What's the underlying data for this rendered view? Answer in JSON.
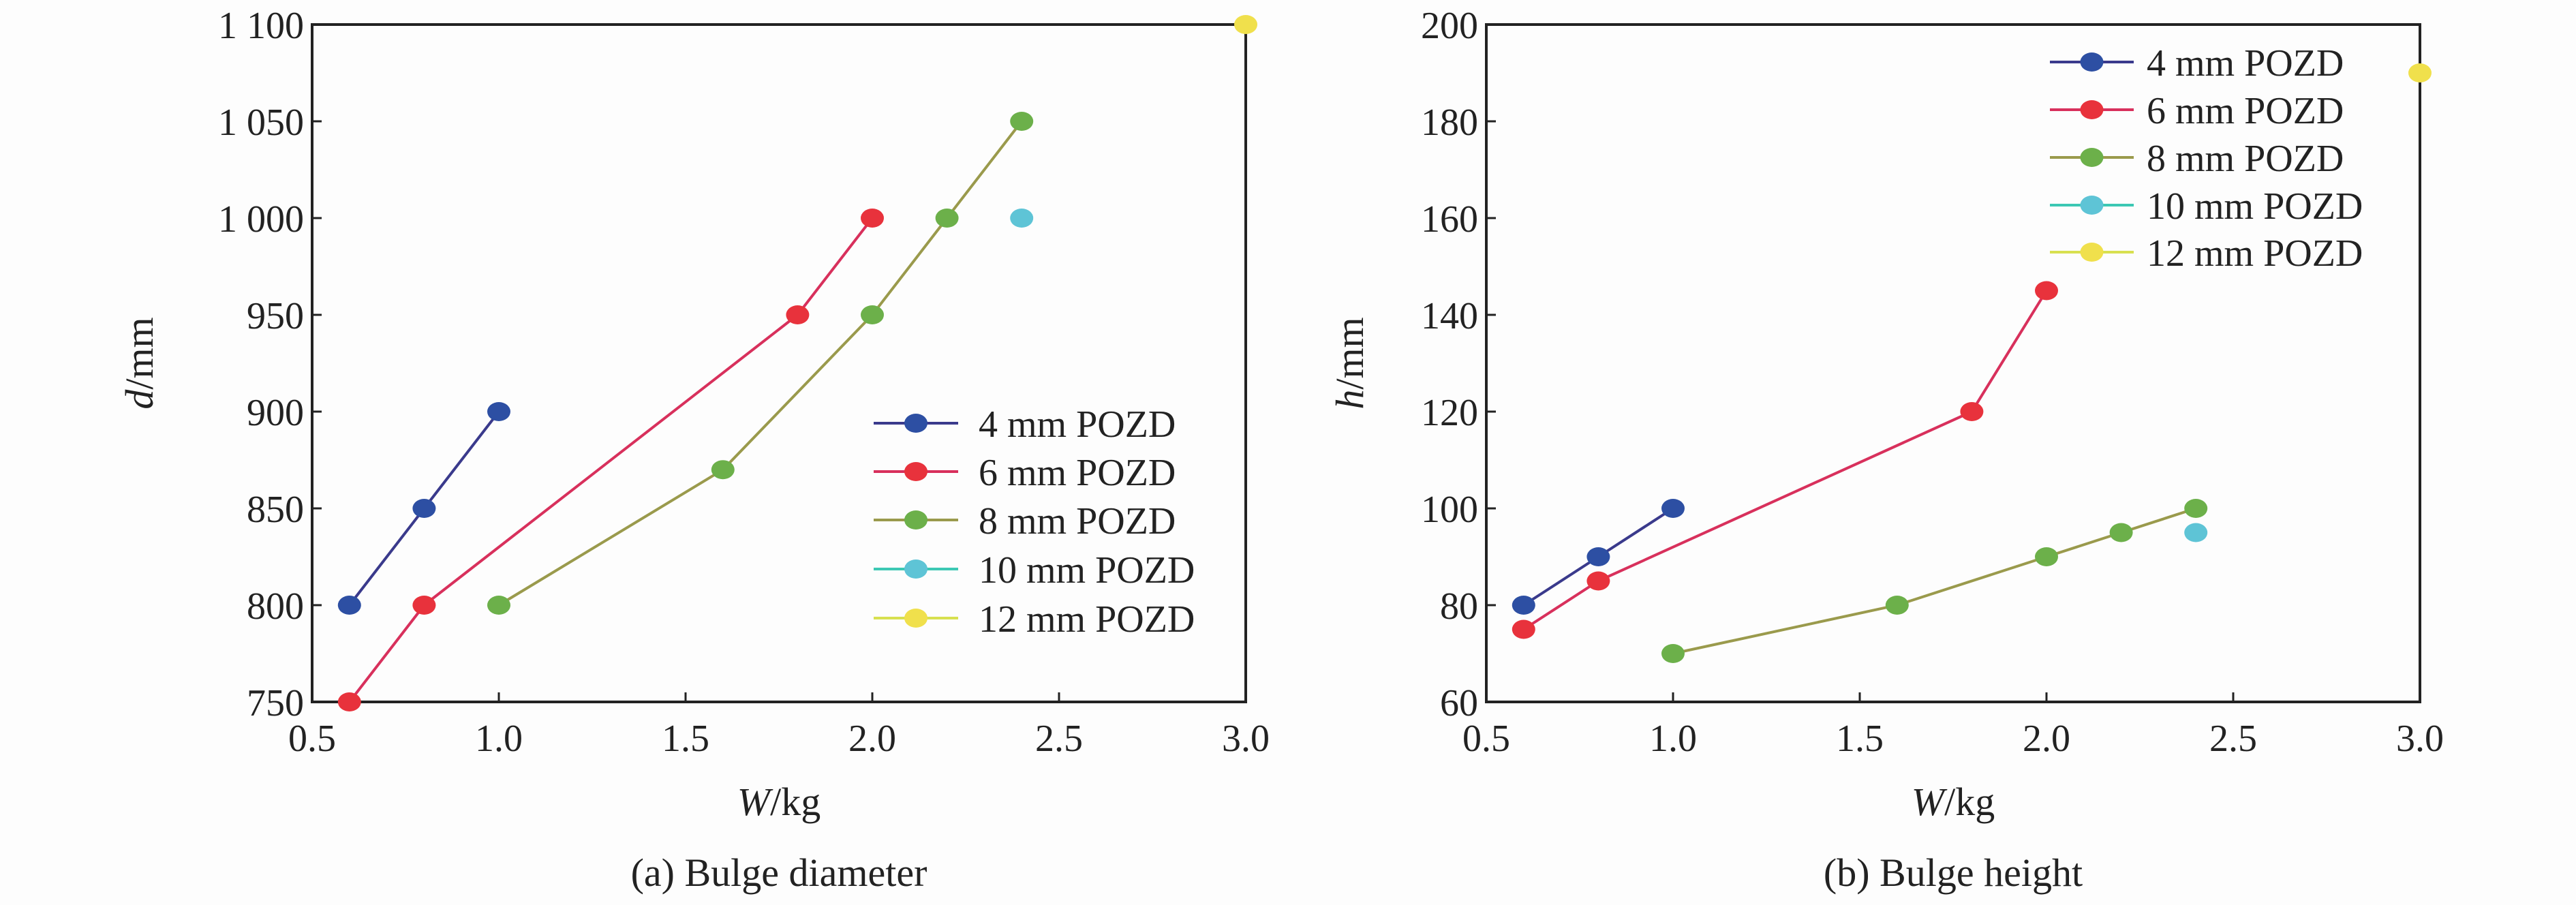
{
  "chart_data": [
    {
      "type": "line",
      "caption": "(a) Bulge diameter",
      "xlabel_var": "W",
      "xlabel_unit": "/kg",
      "ylabel_var": "d",
      "ylabel_unit": "/mm",
      "xlim": [
        0.5,
        3.0
      ],
      "ylim": [
        750,
        1100
      ],
      "xticks": [
        "0.5",
        "1.0",
        "1.5",
        "2.0",
        "2.5",
        "3.0"
      ],
      "yticks": [
        "750",
        "800",
        "850",
        "900",
        "950",
        "1 000",
        "1 050",
        "1 100"
      ],
      "legend_position": "center-right",
      "grid": false,
      "series": [
        {
          "name": "4 mm POZD",
          "color": "#2d4fa3",
          "line": "#3a3a8c",
          "points": [
            [
              0.6,
              800
            ],
            [
              0.8,
              850
            ],
            [
              1.0,
              900
            ]
          ]
        },
        {
          "name": "6 mm POZD",
          "color": "#e8323c",
          "line": "#d8305c",
          "points": [
            [
              0.6,
              750
            ],
            [
              0.8,
              800
            ],
            [
              1.8,
              950
            ],
            [
              2.0,
              1000
            ]
          ]
        },
        {
          "name": "8 mm POZD",
          "color": "#6cb04a",
          "line": "#9a9a4c",
          "points": [
            [
              1.0,
              800
            ],
            [
              1.6,
              870
            ],
            [
              2.0,
              950
            ],
            [
              2.2,
              1000
            ],
            [
              2.4,
              1050
            ]
          ]
        },
        {
          "name": "10 mm POZD",
          "color": "#5ec4d6",
          "line": "#3cc8b4",
          "points": [
            [
              2.4,
              1000
            ]
          ]
        },
        {
          "name": "12 mm POZD",
          "color": "#f0e04c",
          "line": "#d8e050",
          "points": [
            [
              3.0,
              1100
            ]
          ]
        }
      ]
    },
    {
      "type": "line",
      "caption": "(b) Bulge height",
      "xlabel_var": "W",
      "xlabel_unit": "/kg",
      "ylabel_var": "h",
      "ylabel_unit": "/mm",
      "xlim": [
        0.5,
        3.0
      ],
      "ylim": [
        60,
        200
      ],
      "xticks": [
        "0.5",
        "1.0",
        "1.5",
        "2.0",
        "2.5",
        "3.0"
      ],
      "yticks": [
        "60",
        "80",
        "100",
        "120",
        "140",
        "160",
        "180",
        "200"
      ],
      "legend_position": "top-right",
      "grid": false,
      "series": [
        {
          "name": "4 mm POZD",
          "color": "#2d4fa3",
          "line": "#3a3a8c",
          "points": [
            [
              0.6,
              80
            ],
            [
              0.8,
              90
            ],
            [
              1.0,
              100
            ]
          ]
        },
        {
          "name": "6 mm POZD",
          "color": "#e8323c",
          "line": "#d8305c",
          "points": [
            [
              0.6,
              75
            ],
            [
              0.8,
              85
            ],
            [
              1.8,
              120
            ],
            [
              2.0,
              145
            ]
          ]
        },
        {
          "name": "8 mm POZD",
          "color": "#6cb04a",
          "line": "#9a9a4c",
          "points": [
            [
              1.0,
              70
            ],
            [
              1.6,
              80
            ],
            [
              2.0,
              90
            ],
            [
              2.2,
              95
            ],
            [
              2.4,
              100
            ]
          ]
        },
        {
          "name": "10 mm POZD",
          "color": "#5ec4d6",
          "line": "#3cc8b4",
          "points": [
            [
              2.4,
              95
            ]
          ]
        },
        {
          "name": "12 mm POZD",
          "color": "#f0e04c",
          "line": "#d8e050",
          "points": [
            [
              3.0,
              190
            ]
          ]
        }
      ]
    }
  ]
}
